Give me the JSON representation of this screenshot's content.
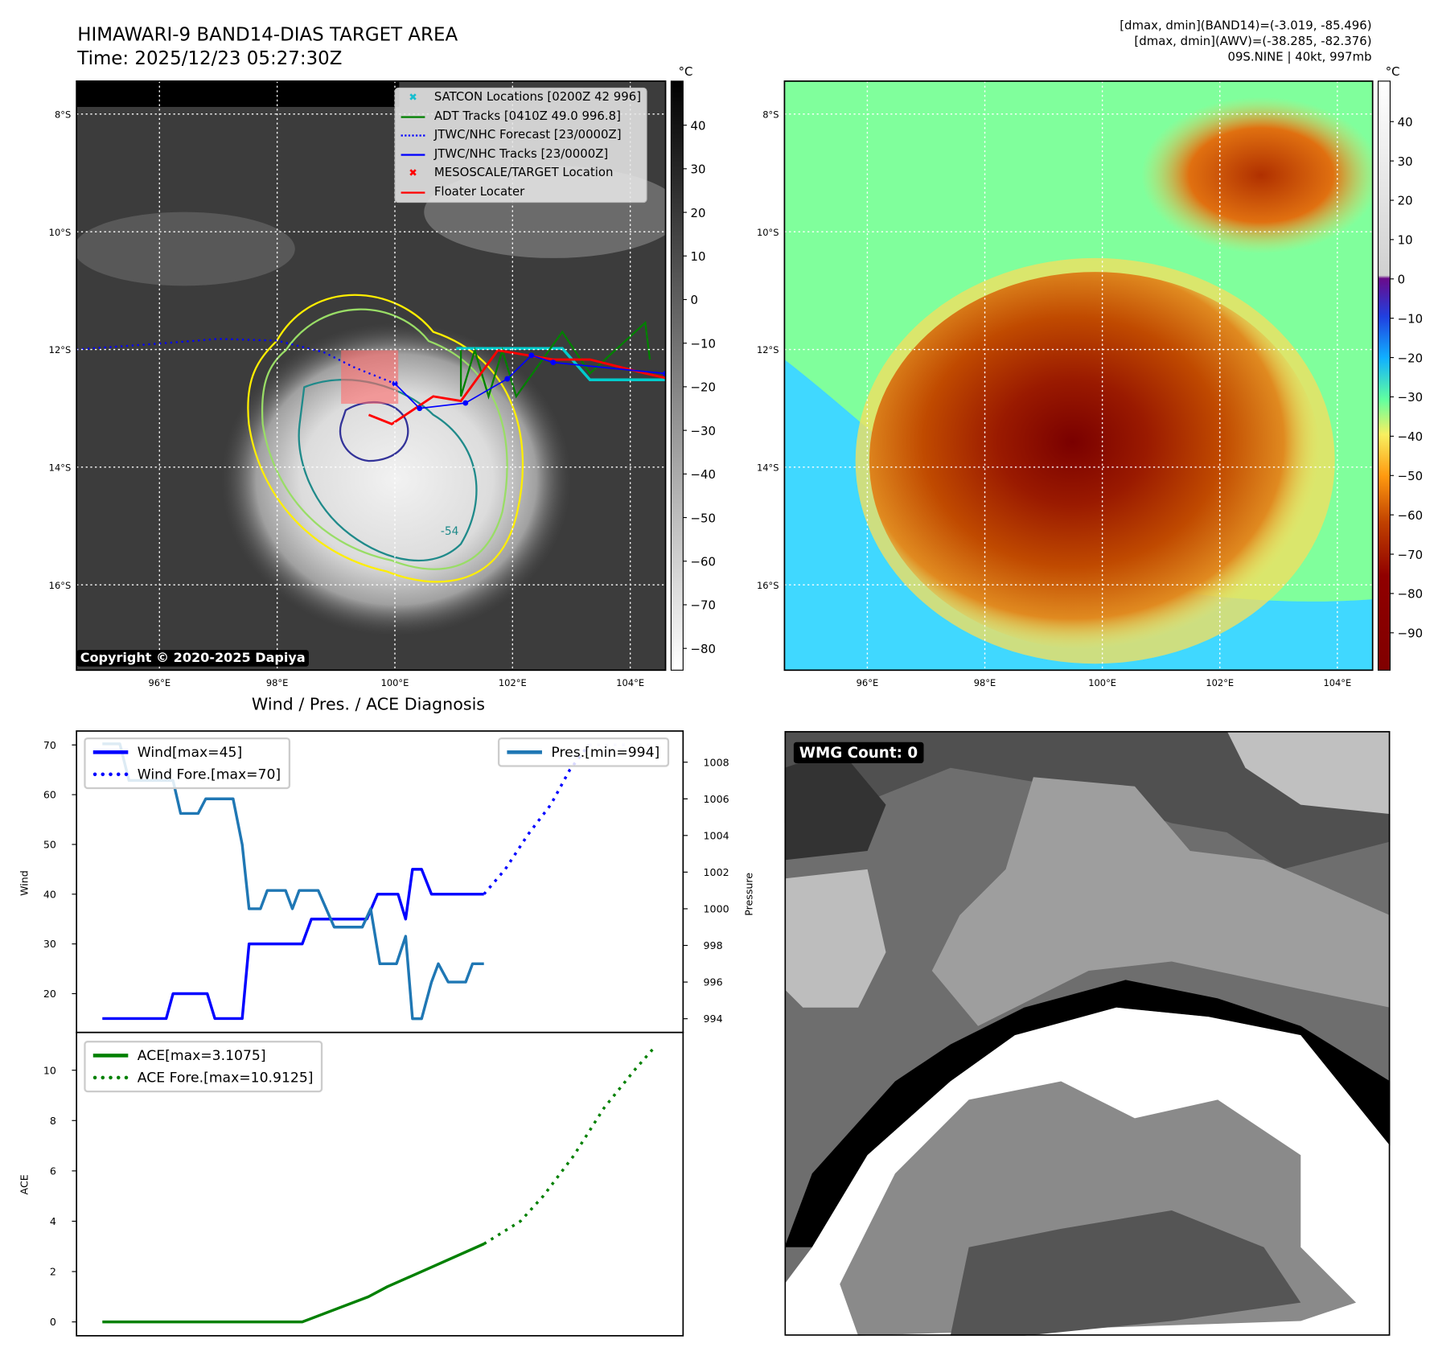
{
  "header": {
    "title_line1": "HIMAWARI-9 BAND14-DIAS TARGET AREA",
    "title_line2": "Time: 2025/12/23 05:27:30Z",
    "info_line1": "[dmax, dmin](BAND14)=(-3.019, -85.496)",
    "info_line2": "[dmax, dmin](AWV)=(-38.285, -82.376)",
    "info_line3": "09S.NINE | 40kt, 997mb"
  },
  "map": {
    "lat_labels": [
      "8°S",
      "10°S",
      "12°S",
      "14°S",
      "16°S"
    ],
    "lat_values": [
      -8,
      -10,
      -12,
      -14,
      -16
    ],
    "lon_labels": [
      "96°E",
      "98°E",
      "100°E",
      "102°E",
      "104°E"
    ],
    "lon_values": [
      96,
      98,
      100,
      102,
      104
    ],
    "lon_range": [
      94.59,
      104.6
    ],
    "lat_range": [
      -7.44,
      -17.45
    ],
    "copyright": "Copyright © 2020-2025 Dapiya",
    "contour_label": "-54",
    "legend": [
      {
        "label": "SATCON Locations [0200Z 42 996]",
        "color": "#17becf",
        "kind": "x"
      },
      {
        "label": "ADT Tracks [0410Z 49.0 996.8]",
        "color": "#008000",
        "kind": "line"
      },
      {
        "label": "JTWC/NHC Forecast [23/0000Z]",
        "color": "#0000ff",
        "kind": "dotted"
      },
      {
        "label": "JTWC/NHC Tracks [23/0000Z]",
        "color": "#0000ff",
        "kind": "line-dot"
      },
      {
        "label": "MESOSCALE/TARGET Location",
        "color": "#ff0000",
        "kind": "x"
      },
      {
        "label": "Floater Locater",
        "color": "#ff0000",
        "kind": "line"
      }
    ],
    "jtwc_track": [
      [
        100.0,
        -12.58
      ],
      [
        100.42,
        -13.0
      ],
      [
        101.2,
        -12.91
      ],
      [
        101.91,
        -12.5
      ],
      [
        102.32,
        -12.1
      ],
      [
        102.69,
        -12.22
      ],
      [
        104.6,
        -12.41
      ]
    ],
    "jtwc_forecast": [
      [
        94.59,
        -12.0
      ],
      [
        96.0,
        -11.9
      ],
      [
        97.0,
        -11.82
      ],
      [
        98.0,
        -11.85
      ],
      [
        98.8,
        -12.05
      ],
      [
        99.3,
        -12.3
      ],
      [
        99.8,
        -12.5
      ],
      [
        100.0,
        -12.58
      ]
    ]
  },
  "colorbar_left": {
    "unit": "°C",
    "ticks": [
      "40",
      "30",
      "20",
      "10",
      "0",
      "−10",
      "−20",
      "−30",
      "−40",
      "−50",
      "−60",
      "−70",
      "−80"
    ],
    "values": [
      40,
      30,
      20,
      10,
      0,
      -10,
      -20,
      -30,
      -40,
      -50,
      -60,
      -70,
      -80
    ],
    "range": [
      50.1,
      -85
    ]
  },
  "colorbar_right": {
    "unit": "°C",
    "ticks": [
      "40",
      "30",
      "20",
      "10",
      "0",
      "−10",
      "−20",
      "−30",
      "−40",
      "−50",
      "−60",
      "−70",
      "−80",
      "−90"
    ],
    "values": [
      40,
      30,
      20,
      10,
      0,
      -10,
      -20,
      -30,
      -40,
      -50,
      -60,
      -70,
      -80,
      -90
    ],
    "range": [
      50.3,
      -99.5
    ]
  },
  "diagnosis_title": "Wind / Pres. / ACE Diagnosis",
  "wmg": {
    "label": "WMG Count: 0"
  },
  "chart_data": [
    {
      "type": "line",
      "title": "Wind / Pres. / ACE Diagnosis",
      "ylabel": "Wind",
      "y2label": "Pressure",
      "xlim": [
        -3.4,
        76.4
      ],
      "ylim": [
        12.2,
        72.8
      ],
      "y2lim": [
        993.25,
        1009.7
      ],
      "yticks": [
        20,
        30,
        40,
        50,
        60,
        70
      ],
      "y2ticks": [
        994,
        996,
        998,
        1000,
        1002,
        1004,
        1006,
        1008
      ],
      "legend": [
        "Wind[max=45]",
        "Wind Fore.[max=70]",
        "Pres.[min=994]"
      ],
      "series": [
        {
          "name": "Wind[max=45]",
          "color": "#0000ff",
          "style": "solid",
          "points": [
            [
              0,
              15
            ],
            [
              8.4,
              15
            ],
            [
              9.3,
              20
            ],
            [
              13.8,
              20
            ],
            [
              14.8,
              15
            ],
            [
              18.4,
              15
            ],
            [
              19.3,
              30
            ],
            [
              26.3,
              30
            ],
            [
              27.5,
              35
            ],
            [
              34.8,
              35
            ],
            [
              36.2,
              40
            ],
            [
              38.9,
              40
            ],
            [
              39.9,
              35
            ],
            [
              40.8,
              45
            ],
            [
              42,
              45
            ],
            [
              43.3,
              40
            ],
            [
              50.2,
              40
            ]
          ]
        },
        {
          "name": "Wind Fore.[max=70]",
          "color": "#0000ff",
          "style": "dotted",
          "points": [
            [
              50.2,
              40
            ],
            [
              53,
              45
            ],
            [
              56,
              52
            ],
            [
              59,
              58
            ],
            [
              61.5,
              65
            ],
            [
              63,
              68
            ],
            [
              64,
              70
            ]
          ]
        },
        {
          "name": "Wind Fore. (cont.)",
          "color": "#ccccff",
          "style": "dotted",
          "points": [
            [
              64,
              70
            ],
            [
              72.6,
              70
            ]
          ]
        },
        {
          "name": "Pres.[min=994]",
          "color": "#1f77b4",
          "style": "solid",
          "axis": "y2",
          "points": [
            [
              0,
              1009
            ],
            [
              2.3,
              1009
            ],
            [
              3.5,
              1007
            ],
            [
              9.3,
              1007
            ],
            [
              10.3,
              1005.2
            ],
            [
              12.6,
              1005.2
            ],
            [
              13.6,
              1006
            ],
            [
              17.2,
              1006
            ],
            [
              18.4,
              1003.5
            ],
            [
              19.3,
              1000
            ],
            [
              20.8,
              1000
            ],
            [
              21.7,
              1001
            ],
            [
              24.1,
              1001
            ],
            [
              25,
              1000
            ],
            [
              25.9,
              1001
            ],
            [
              28.4,
              1001
            ],
            [
              30.5,
              999
            ],
            [
              34.2,
              999
            ],
            [
              35.3,
              1000
            ],
            [
              36.5,
              997
            ],
            [
              38.7,
              997
            ],
            [
              39.9,
              998.5
            ],
            [
              40.8,
              994
            ],
            [
              42,
              994
            ],
            [
              43.3,
              996
            ],
            [
              44.2,
              997
            ],
            [
              45.5,
              996
            ],
            [
              47.8,
              996
            ],
            [
              48.7,
              997
            ],
            [
              50.2,
              997
            ]
          ]
        }
      ]
    },
    {
      "type": "line",
      "ylabel": "ACE",
      "xlim": [
        -3.4,
        76.4
      ],
      "ylim": [
        -0.55,
        11.5
      ],
      "yticks": [
        0,
        2,
        4,
        6,
        8,
        10
      ],
      "legend": [
        "ACE[max=3.1075]",
        "ACE Fore.[max=10.9125]"
      ],
      "series": [
        {
          "name": "ACE[max=3.1075]",
          "color": "#008000",
          "style": "solid",
          "points": [
            [
              0,
              0
            ],
            [
              26.3,
              0
            ],
            [
              35,
              1
            ],
            [
              37.5,
              1.4
            ],
            [
              39,
              1.6
            ],
            [
              42,
              2.0
            ],
            [
              50.2,
              3.1
            ]
          ]
        },
        {
          "name": "ACE Fore.[max=10.9125]",
          "color": "#008000",
          "style": "dotted",
          "points": [
            [
              50.2,
              3.1
            ],
            [
              55,
              4
            ],
            [
              58,
              5
            ],
            [
              62,
              6.6
            ],
            [
              66,
              8.5
            ],
            [
              70,
              10
            ],
            [
              72.6,
              10.9
            ]
          ]
        }
      ]
    }
  ]
}
